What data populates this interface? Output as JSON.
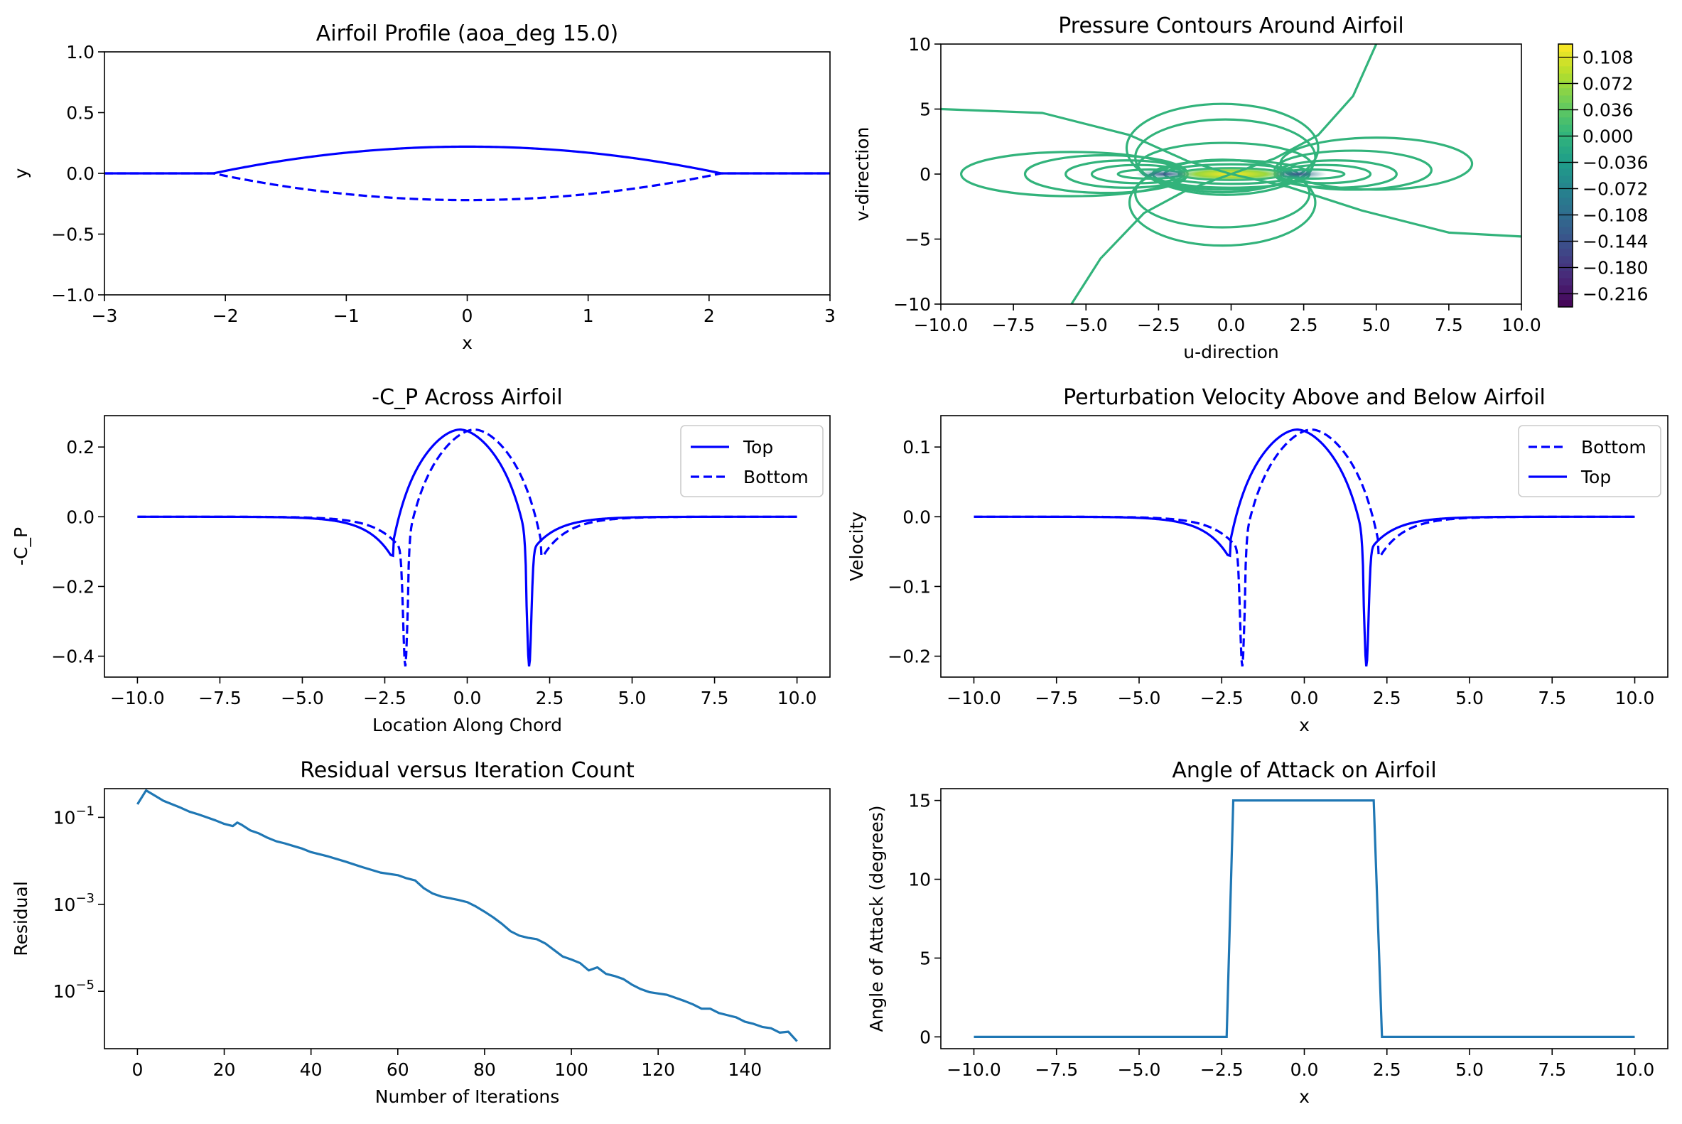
{
  "chart_data": [
    {
      "id": "airfoil_profile",
      "type": "line",
      "title": "Airfoil Profile (aoa_deg 15.0)",
      "xlabel": "x",
      "ylabel": "y",
      "xlim": [
        -3,
        3
      ],
      "ylim": [
        -1,
        1
      ],
      "xticks": [
        "−3",
        "−2",
        "−1",
        "0",
        "1",
        "2",
        "3"
      ],
      "yticks": [
        "−1.0",
        "−0.5",
        "0.0",
        "0.5",
        "1.0"
      ],
      "grid": true,
      "series": [
        {
          "style": "solid",
          "color": "#0000ff",
          "desc": "upper surface y = 0.22*(1-(x/2.1)^2) for |x|<=2.1, else 0"
        },
        {
          "style": "dashed",
          "color": "#0000ff",
          "desc": "lower surface, mirror of upper"
        }
      ],
      "thickness": 0.22,
      "half_chord": 2.1
    },
    {
      "id": "pressure_contours",
      "type": "contour",
      "title": "Pressure Contours Around Airfoil",
      "xlabel": "u-direction",
      "ylabel": "v-direction",
      "xlim": [
        -10,
        10
      ],
      "ylim": [
        -10,
        10
      ],
      "xticks": [
        "−10.0",
        "−7.5",
        "−5.0",
        "−2.5",
        "0.0",
        "2.5",
        "5.0",
        "7.5",
        "10.0"
      ],
      "yticks": [
        "−10",
        "−5",
        "0",
        "5",
        "10"
      ],
      "colorbar_ticks": [
        "0.108",
        "0.072",
        "0.036",
        "0.000",
        "−0.036",
        "−0.072",
        "−0.108",
        "−0.144",
        "−0.180",
        "−0.216"
      ],
      "colorbar_range": [
        -0.234,
        0.126
      ],
      "colormap": "viridis",
      "grid": true
    },
    {
      "id": "cp",
      "type": "line",
      "title": "-C_P Across Airfoil",
      "xlabel": "Location Along Chord",
      "ylabel": "-C_P",
      "xlim": [
        -11,
        11
      ],
      "ylim": [
        -0.46,
        0.29
      ],
      "xticks": [
        "−10.0",
        "−7.5",
        "−5.0",
        "−2.5",
        "0.0",
        "2.5",
        "5.0",
        "7.5",
        "10.0"
      ],
      "yticks": [
        "−0.4",
        "−0.2",
        "0.0",
        "0.2"
      ],
      "legend": [
        "Top",
        "Bottom"
      ],
      "legend_position": "top-right",
      "grid": true,
      "peak": 0.25,
      "trough": -0.43,
      "near_edge": -0.11
    },
    {
      "id": "velocity",
      "type": "line",
      "title": "Perturbation Velocity Above and Below Airfoil",
      "xlabel": "x",
      "ylabel": "Velocity",
      "xlim": [
        -11,
        11
      ],
      "ylim": [
        -0.23,
        0.145
      ],
      "xticks": [
        "−10.0",
        "−7.5",
        "−5.0",
        "−2.5",
        "0.0",
        "2.5",
        "5.0",
        "7.5",
        "10.0"
      ],
      "yticks": [
        "−0.2",
        "−0.1",
        "0.0",
        "0.1"
      ],
      "legend": [
        "Bottom",
        "Top"
      ],
      "legend_position": "top-right",
      "grid": true,
      "peak": 0.125,
      "trough": -0.215,
      "near_edge": -0.055
    },
    {
      "id": "residual",
      "type": "line",
      "title": "Residual versus Iteration Count",
      "xlabel": "Number of Iterations",
      "ylabel": "Residual",
      "xlim": [
        -7.6,
        159.6
      ],
      "ylim_log10": [
        -6.32,
        -0.34
      ],
      "xticks": [
        "0",
        "20",
        "40",
        "60",
        "80",
        "100",
        "120",
        "140"
      ],
      "yticks": [
        {
          "base": "10",
          "exp": "−1"
        },
        {
          "base": "10",
          "exp": "−3"
        },
        {
          "base": "10",
          "exp": "−5"
        }
      ],
      "yscale": "log",
      "grid": true,
      "x": [
        0,
        2,
        4,
        6,
        8,
        10,
        12,
        14,
        16,
        18,
        20,
        22,
        23,
        24,
        26,
        28,
        30,
        32,
        34,
        36,
        38,
        40,
        44,
        48,
        52,
        56,
        60,
        62,
        64,
        66,
        68,
        70,
        72,
        74,
        76,
        78,
        80,
        82,
        84,
        86,
        88,
        90,
        92,
        94,
        96,
        98,
        100,
        102,
        104,
        106,
        108,
        110,
        112,
        114,
        116,
        118,
        120,
        122,
        124,
        126,
        128,
        130,
        132,
        134,
        136,
        138,
        140,
        142,
        144,
        146,
        148,
        150,
        152
      ],
      "y_log10": [
        -0.7,
        -0.38,
        -0.5,
        -0.62,
        -0.7,
        -0.78,
        -0.87,
        -0.93,
        -1.0,
        -1.07,
        -1.15,
        -1.2,
        -1.12,
        -1.17,
        -1.3,
        -1.37,
        -1.47,
        -1.55,
        -1.6,
        -1.66,
        -1.72,
        -1.8,
        -1.9,
        -2.02,
        -2.15,
        -2.27,
        -2.33,
        -2.4,
        -2.45,
        -2.63,
        -2.75,
        -2.82,
        -2.86,
        -2.9,
        -2.95,
        -3.05,
        -3.17,
        -3.3,
        -3.45,
        -3.62,
        -3.72,
        -3.77,
        -3.8,
        -3.9,
        -4.05,
        -4.2,
        -4.27,
        -4.35,
        -4.52,
        -4.45,
        -4.6,
        -4.65,
        -4.72,
        -4.85,
        -4.95,
        -5.02,
        -5.05,
        -5.08,
        -5.15,
        -5.22,
        -5.3,
        -5.4,
        -5.4,
        -5.5,
        -5.55,
        -5.6,
        -5.7,
        -5.75,
        -5.82,
        -5.85,
        -5.95,
        -5.93,
        -6.15
      ]
    },
    {
      "id": "aoa",
      "type": "line",
      "title": "Angle of Attack on Airfoil",
      "xlabel": "x",
      "ylabel": "Angle of Attack (degrees)",
      "xlim": [
        -11,
        11
      ],
      "ylim": [
        -0.75,
        15.75
      ],
      "xticks": [
        "−10.0",
        "−7.5",
        "−5.0",
        "−2.5",
        "0.0",
        "2.5",
        "5.0",
        "7.5",
        "10.0"
      ],
      "yticks": [
        "0",
        "5",
        "10",
        "15"
      ],
      "grid": true,
      "x": [
        -10.0,
        -2.35,
        -2.15,
        2.1,
        2.35,
        10.0
      ],
      "y": [
        0,
        0,
        15,
        15,
        0,
        0
      ]
    }
  ]
}
